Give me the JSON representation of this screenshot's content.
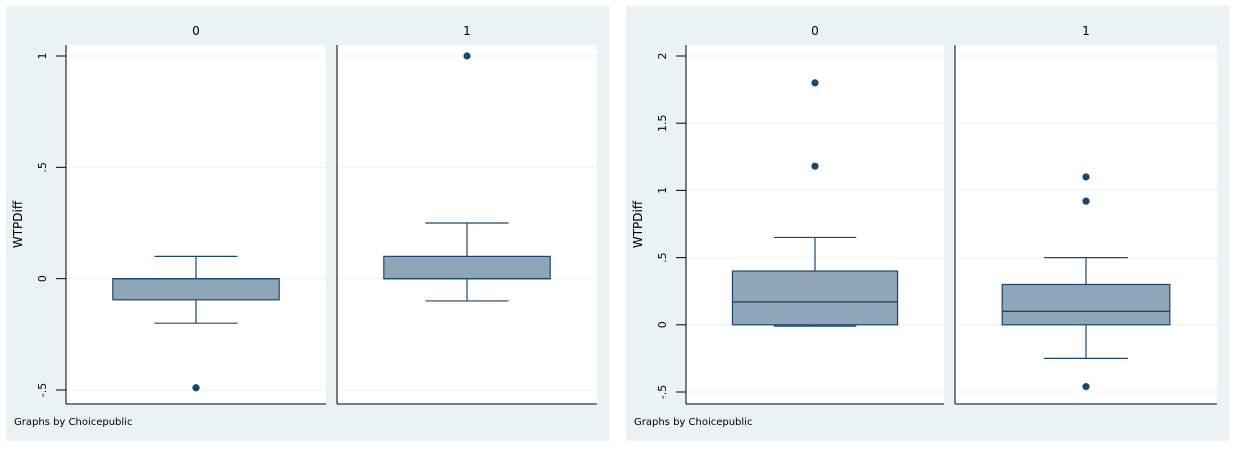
{
  "chart_data": [
    {
      "type": "box",
      "ylabel": "WTPDiff",
      "note": "Graphs by Choicepublic",
      "ylim": [
        -0.55,
        1.1
      ],
      "yticks": [
        -0.5,
        0,
        0.5,
        1
      ],
      "ytick_labels": [
        "-.5",
        "0",
        ".5",
        "1"
      ],
      "panels": [
        {
          "label": "0",
          "box": {
            "lower_whisker": -0.2,
            "q1": -0.095,
            "median": 0.0,
            "q3": 0.0,
            "upper_whisker": 0.1
          },
          "outliers": [
            -0.49
          ]
        },
        {
          "label": "1",
          "box": {
            "lower_whisker": -0.1,
            "q1": 0.0,
            "median": 0.0,
            "q3": 0.1,
            "upper_whisker": 0.25
          },
          "outliers": [
            1.0
          ]
        }
      ]
    },
    {
      "type": "box",
      "ylabel": "WTPDiff",
      "note": "Graphs by Choicepublic",
      "ylim": [
        -0.55,
        2.25
      ],
      "yticks": [
        -0.5,
        0,
        0.5,
        1,
        1.5,
        2
      ],
      "ytick_labels": [
        "-.5",
        "0",
        ".5",
        "1",
        "1.5",
        "2"
      ],
      "panels": [
        {
          "label": "0",
          "box": {
            "lower_whisker": -0.01,
            "q1": 0.0,
            "median": 0.17,
            "q3": 0.4,
            "upper_whisker": 0.65
          },
          "outliers": [
            1.8,
            1.18
          ]
        },
        {
          "label": "1",
          "box": {
            "lower_whisker": -0.25,
            "q1": 0.0,
            "median": 0.1,
            "q3": 0.3,
            "upper_whisker": 0.5
          },
          "outliers": [
            1.1,
            0.92,
            -0.46
          ]
        }
      ]
    }
  ],
  "colors": {
    "outer_bg": "#eaf2f3",
    "plot_bg": "#ffffff",
    "strip_bg": "#eaf2f3",
    "box_fill": "#8fa5b8",
    "box_line": "#1a476f",
    "marker": "#1a476f",
    "grid": "#eaf2f3",
    "axis": "#000000"
  }
}
